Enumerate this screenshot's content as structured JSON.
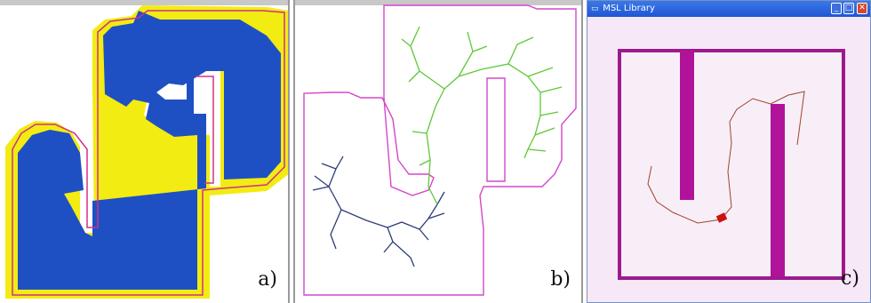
{
  "panels": [
    {
      "id": "a",
      "label": "a)"
    },
    {
      "id": "b",
      "label": "b)"
    },
    {
      "id": "c",
      "label": "c)"
    }
  ],
  "window": {
    "title": "MSL Library",
    "title_icon": "window-icon",
    "buttons": [
      "minimize-icon",
      "maximize-icon",
      "close-icon"
    ]
  },
  "colors": {
    "obstacle_fill": "#1e50c4",
    "expanded_fill": "#f2ec12",
    "boundary": "#d0308a",
    "tree_start": "#2e3d78",
    "tree_goal": "#5ec838",
    "robot": "#cc1111",
    "pillar": "#b0139a"
  }
}
